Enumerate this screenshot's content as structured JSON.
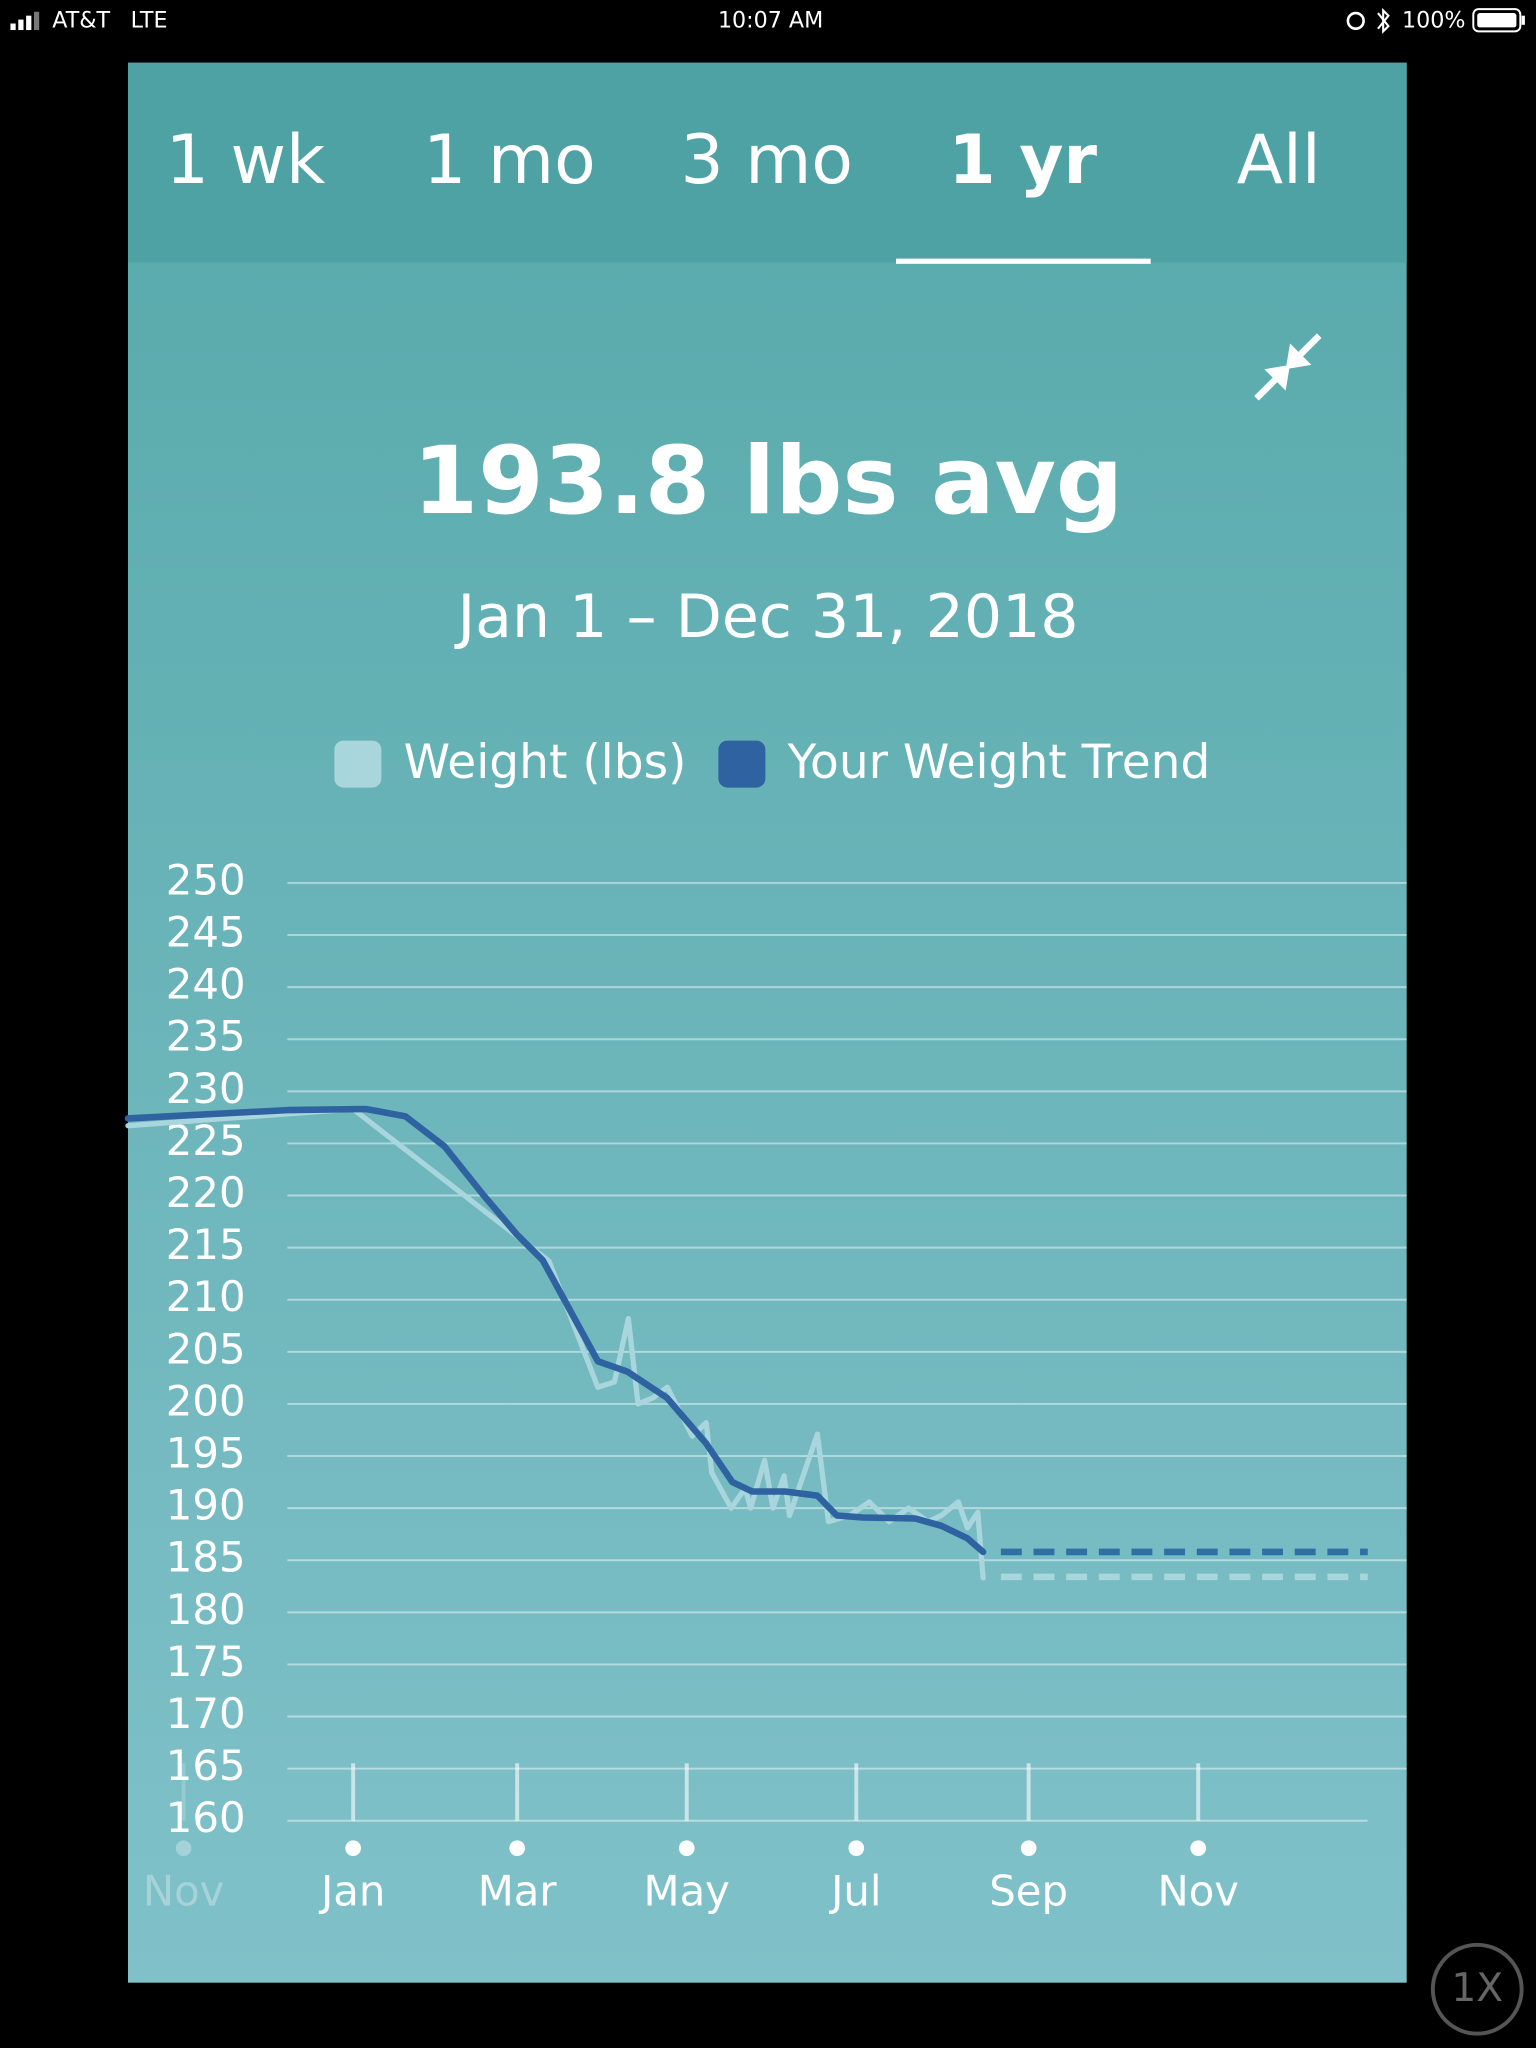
{
  "status_bar": {
    "carrier": "AT&T",
    "network": "LTE",
    "time": "10:07 AM",
    "battery": "100%"
  },
  "tabs": [
    "1 wk",
    "1 mo",
    "3 mo",
    "1 yr",
    "All"
  ],
  "selected_tab": 3,
  "headline": "193.8 lbs avg",
  "date_range": "Jan 1 – Dec 31, 2018",
  "zoom_button": "1X",
  "chart_data": {
    "type": "line",
    "xlim": [
      -81,
      379
    ],
    "xticks": [
      {
        "value": -61,
        "label": "Nov"
      },
      {
        "value": 0,
        "label": "Jan"
      },
      {
        "value": 59,
        "label": "Mar"
      },
      {
        "value": 120,
        "label": "May"
      },
      {
        "value": 181,
        "label": "Jul"
      },
      {
        "value": 243,
        "label": "Sep"
      },
      {
        "value": 304,
        "label": "Nov"
      }
    ],
    "ylim": [
      160,
      250
    ],
    "yticks": [
      250,
      245,
      240,
      235,
      230,
      225,
      220,
      215,
      210,
      205,
      200,
      195,
      190,
      185,
      180,
      175,
      170,
      165,
      160
    ],
    "grid": true,
    "series": [
      {
        "name": "Weight (lbs)",
        "color": "#a9d6dc",
        "x": [
          -81,
          0,
          70.5,
          88,
          94,
          99,
          102.5,
          108,
          113,
          122,
          127,
          129,
          136,
          141,
          143,
          148,
          151,
          155,
          157,
          167,
          171,
          178.6,
          185.7,
          192.8,
          199.8,
          206.9,
          211.6,
          217.7,
          221,
          224.7,
          226.6
        ],
        "values": [
          226.7,
          228.3,
          213.7,
          201.6,
          202.1,
          208.2,
          200,
          200.6,
          201.6,
          196.9,
          198.2,
          193.4,
          190,
          191.9,
          190,
          194.6,
          190,
          193.1,
          189.3,
          197.1,
          188.7,
          189.3,
          190.6,
          188.7,
          190,
          188.7,
          189.3,
          190.6,
          188.1,
          189.6,
          183.3
        ]
      },
      {
        "name": "Your Weight Trend",
        "color": "#2f62a0",
        "x": [
          -81,
          -23.5,
          4.7,
          18.8,
          32.9,
          47,
          58.8,
          68.2,
          88,
          98.7,
          112.8,
          127,
          136.4,
          143.5,
          155.3,
          167,
          174,
          183.4,
          202.2,
          211.6,
          221,
          226.6
        ],
        "values": [
          227.4,
          228.2,
          228.3,
          227.6,
          224.7,
          220,
          216.3,
          213.8,
          204.1,
          203.1,
          200.6,
          196.2,
          192.5,
          191.6,
          191.6,
          191.2,
          189.3,
          189.1,
          189,
          188.3,
          187.1,
          185.8
        ]
      }
    ],
    "projections": [
      {
        "color": "#2f6fa5",
        "x": [
          233,
          365
        ],
        "values": [
          185.8,
          185.8
        ]
      },
      {
        "color": "#a9d6dc",
        "x": [
          233,
          365
        ],
        "values": [
          183.4,
          183.4
        ]
      }
    ]
  }
}
